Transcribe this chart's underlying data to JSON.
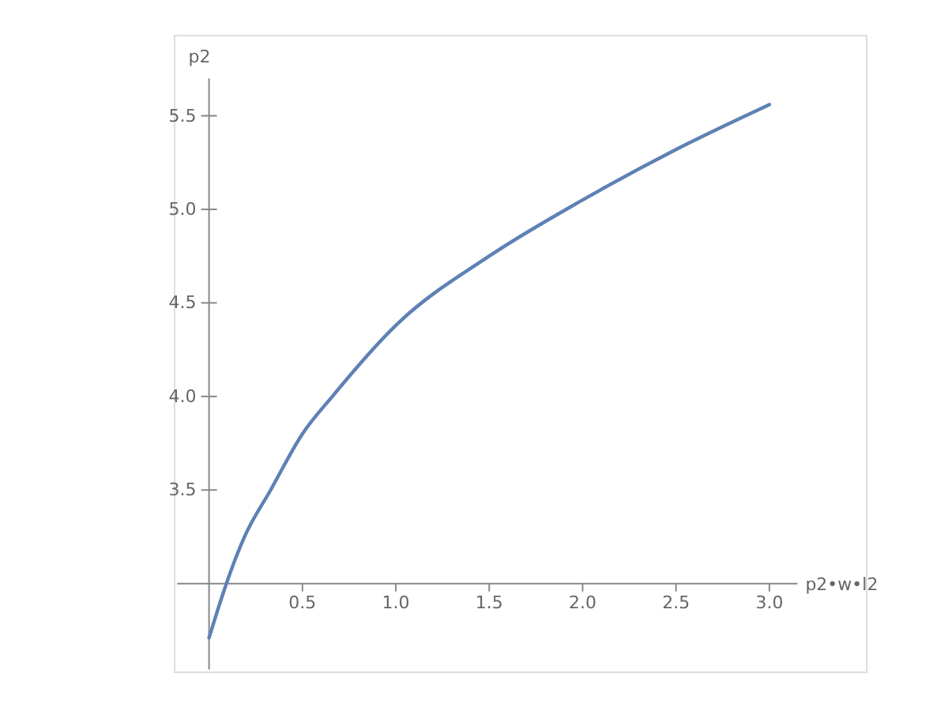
{
  "chart_data": {
    "type": "line",
    "xlabel": "p2•w•l2",
    "ylabel": "p2",
    "x": [
      0,
      0.05,
      0.093,
      0.19,
      0.33,
      0.5,
      0.66,
      1.0,
      1.5,
      2.0,
      2.5,
      3.0
    ],
    "series": [
      {
        "color": "#5e81b5",
        "values": [
          2.71,
          2.87,
          3.0,
          3.25,
          3.5,
          3.8,
          4.0,
          4.38,
          4.75,
          5.05,
          5.32,
          5.56
        ]
      }
    ],
    "xlim": [
      -0.17,
      3.15
    ],
    "ylim": [
      2.54,
      5.7
    ],
    "xticks": [
      {
        "value": 0.5,
        "label": "0.5"
      },
      {
        "value": 1.0,
        "label": "1.0"
      },
      {
        "value": 1.5,
        "label": "1.5"
      },
      {
        "value": 2.0,
        "label": "2.0"
      },
      {
        "value": 2.5,
        "label": "2.5"
      },
      {
        "value": 3.0,
        "label": "3.0"
      }
    ],
    "yticks": [
      {
        "value": 3.5,
        "label": "3.5"
      },
      {
        "value": 4.0,
        "label": "4.0"
      },
      {
        "value": 4.5,
        "label": "4.5"
      },
      {
        "value": 5.0,
        "label": "5.0"
      },
      {
        "value": 5.5,
        "label": "5.5"
      }
    ],
    "grid": false,
    "marker": "none",
    "line_style": "solid"
  }
}
